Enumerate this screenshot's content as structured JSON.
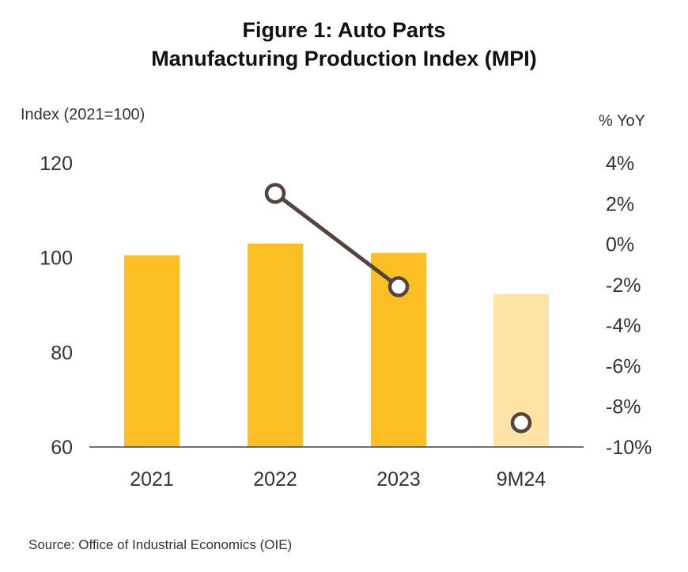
{
  "chart_data": {
    "type": "bar",
    "title_line1": "Figure 1: Auto Parts",
    "title_line2": "Manufacturing Production Index (MPI)",
    "ylabel": "Index (2021=100)",
    "y2label": "% YoY",
    "categories": [
      "2021",
      "2022",
      "2023",
      "9M24"
    ],
    "series": [
      {
        "type": "bar",
        "values": [
          100.5,
          103,
          101,
          92.3
        ],
        "colors": [
          "#FBBF25",
          "#FBBF25",
          "#FBBF25",
          "#FDE3A5"
        ]
      },
      {
        "type": "line",
        "axis": "right",
        "values": [
          null,
          2.5,
          -2.1,
          -8.8
        ],
        "color": "#54443D",
        "segments": [
          [
            1,
            2
          ]
        ]
      }
    ],
    "ylim": [
      60,
      120
    ],
    "yticks": [
      "60",
      "80",
      "100",
      "120"
    ],
    "y2lim": [
      -10,
      4
    ],
    "y2ticks": [
      "-10%",
      "-8%",
      "-6%",
      "-4%",
      "-2%",
      "0%",
      "2%",
      "4%"
    ],
    "source": "Source: Office of Industrial Economics (OIE)"
  }
}
